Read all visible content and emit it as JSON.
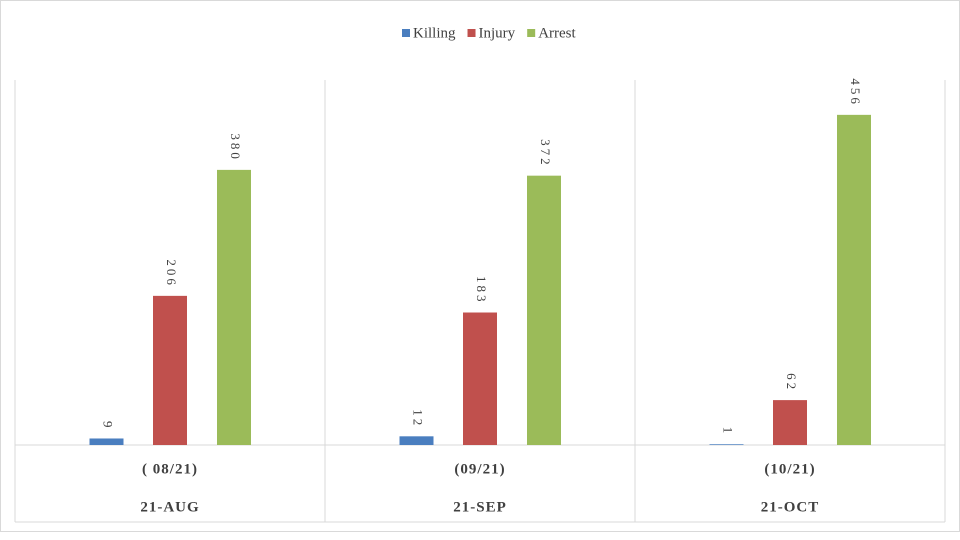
{
  "chart_data": {
    "type": "bar",
    "categories": [
      "( 08/21)",
      "(09/21)",
      "(10/21)"
    ],
    "groups": [
      "21-AUG",
      "21-SEP",
      "21-OCT"
    ],
    "series": [
      {
        "name": "Killing",
        "color": "#4a7ebf",
        "values": [
          9,
          12,
          1
        ]
      },
      {
        "name": "Injury",
        "color": "#c0504d",
        "values": [
          206,
          183,
          62
        ]
      },
      {
        "name": "Arrest",
        "color": "#9bbb59",
        "values": [
          380,
          372,
          456
        ]
      }
    ],
    "legend": "top"
  }
}
